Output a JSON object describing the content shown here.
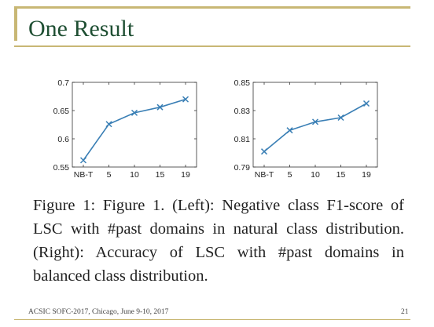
{
  "slide": {
    "title": "One Result",
    "caption": "Figure 1: Figure 1. (Left): Negative class F1-score of LSC with #past domains in natural class distribution. (Right): Accuracy of LSC with #past domains in balanced class distribution.",
    "footer": "ACSIC SOFC-2017, Chicago, June 9-10, 2017",
    "page_number": "21"
  },
  "chart_data": [
    {
      "type": "line",
      "categories": [
        "NB-T",
        "5",
        "10",
        "15",
        "19"
      ],
      "values": [
        0.562,
        0.626,
        0.646,
        0.656,
        0.67
      ],
      "ylim": [
        0.55,
        0.7
      ],
      "yticks": [
        "0.55",
        "0.6",
        "0.65",
        "0.7"
      ],
      "marker": "x",
      "line_color": "#3a7fb5",
      "grid": false,
      "legend": "none",
      "title": "",
      "xlabel": "",
      "ylabel": ""
    },
    {
      "type": "line",
      "categories": [
        "NB-T",
        "5",
        "10",
        "15",
        "19"
      ],
      "values": [
        0.801,
        0.816,
        0.822,
        0.825,
        0.835
      ],
      "ylim": [
        0.79,
        0.85
      ],
      "yticks": [
        "0.79",
        "0.81",
        "0.83",
        "0.85"
      ],
      "marker": "x",
      "line_color": "#3a7fb5",
      "grid": false,
      "legend": "none",
      "title": "",
      "xlabel": "",
      "ylabel": ""
    }
  ]
}
